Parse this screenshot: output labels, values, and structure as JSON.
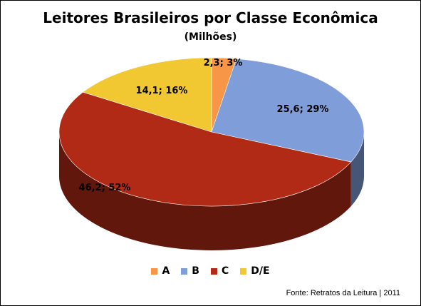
{
  "chart_data": {
    "type": "pie",
    "title": "Leitores Brasileiros por Classe Econômica",
    "subtitle": "(Milhões)",
    "categories": [
      "A",
      "B",
      "C",
      "D/E"
    ],
    "values": [
      2.3,
      25.6,
      46.2,
      14.1
    ],
    "percents": [
      3,
      29,
      52,
      16
    ],
    "data_labels": [
      "2,3; 3%",
      "25,6; 29%",
      "46,2; 52%",
      "14,1; 16%"
    ],
    "colors": [
      "#F79646",
      "#7F9DD9",
      "#B02A16",
      "#F2C832"
    ],
    "legend_position": "bottom",
    "source": "Fonte:  Retratos da Leitura  | 2011"
  }
}
